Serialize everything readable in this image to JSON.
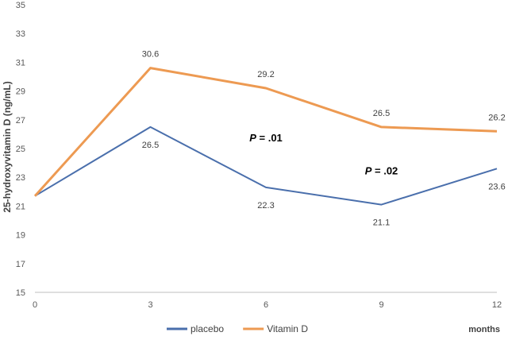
{
  "chart_data": {
    "type": "line",
    "ylabel": "25-hydroxyvitamin D (ng/mL)",
    "xlabel": "months",
    "x": [
      0,
      3,
      6,
      9,
      12
    ],
    "xlim": [
      0,
      12
    ],
    "ylim": [
      15,
      35
    ],
    "yticks": [
      15,
      17,
      19,
      21,
      23,
      25,
      27,
      29,
      31,
      33,
      35
    ],
    "grid": false,
    "legend": "bottom",
    "series": [
      {
        "name": "placebo",
        "color": "#4a6fac",
        "values": [
          21.7,
          26.5,
          22.3,
          21.1,
          23.6
        ],
        "labels": [
          "",
          "26.5",
          "22.3",
          "21.1",
          "23.6"
        ],
        "label_position": "below"
      },
      {
        "name": "Vitamin D",
        "color": "#ed9a52",
        "values": [
          21.7,
          30.6,
          29.2,
          26.5,
          26.2
        ],
        "labels": [
          "",
          "30.6",
          "29.2",
          "26.5",
          "26.2"
        ],
        "label_position": "above"
      }
    ],
    "annotations": [
      {
        "text_italic": "P",
        "text_rest": " = .01",
        "x": 6,
        "y": 25.5
      },
      {
        "text_italic": "P",
        "text_rest": " = .02",
        "x": 9,
        "y": 23.2
      }
    ]
  }
}
